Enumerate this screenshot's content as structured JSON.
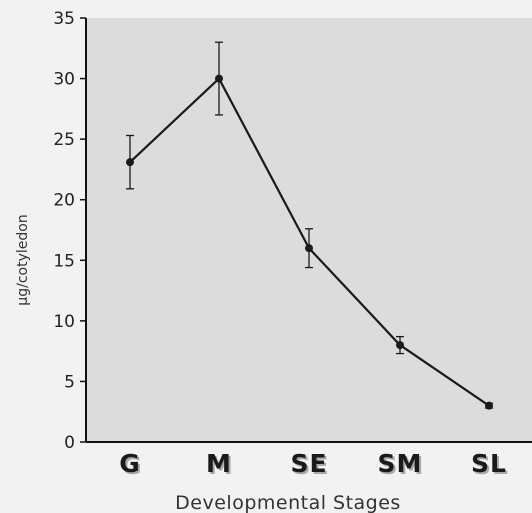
{
  "colors": {
    "figure_background": "#f2f2f2",
    "plot_background": "#dcdcdc",
    "line": "#1a1a1a",
    "text": "#222222",
    "category_shadow": "#a8a8a8"
  },
  "chart_data": {
    "type": "line",
    "title": "",
    "xlabel": "Developmental Stages",
    "ylabel": "µg/cotyledon",
    "categories": [
      "G",
      "M",
      "SE",
      "SM",
      "SL"
    ],
    "series": [
      {
        "values": [
          23.1,
          30.0,
          16.0,
          8.0,
          3.0
        ],
        "errors": [
          2.2,
          3.0,
          1.6,
          0.7,
          0.2
        ]
      }
    ],
    "ylim": [
      0,
      35
    ],
    "yticks": [
      "0",
      "5",
      "10",
      "15",
      "20",
      "25",
      "30",
      "35"
    ],
    "grid": false,
    "error_bars": true
  }
}
